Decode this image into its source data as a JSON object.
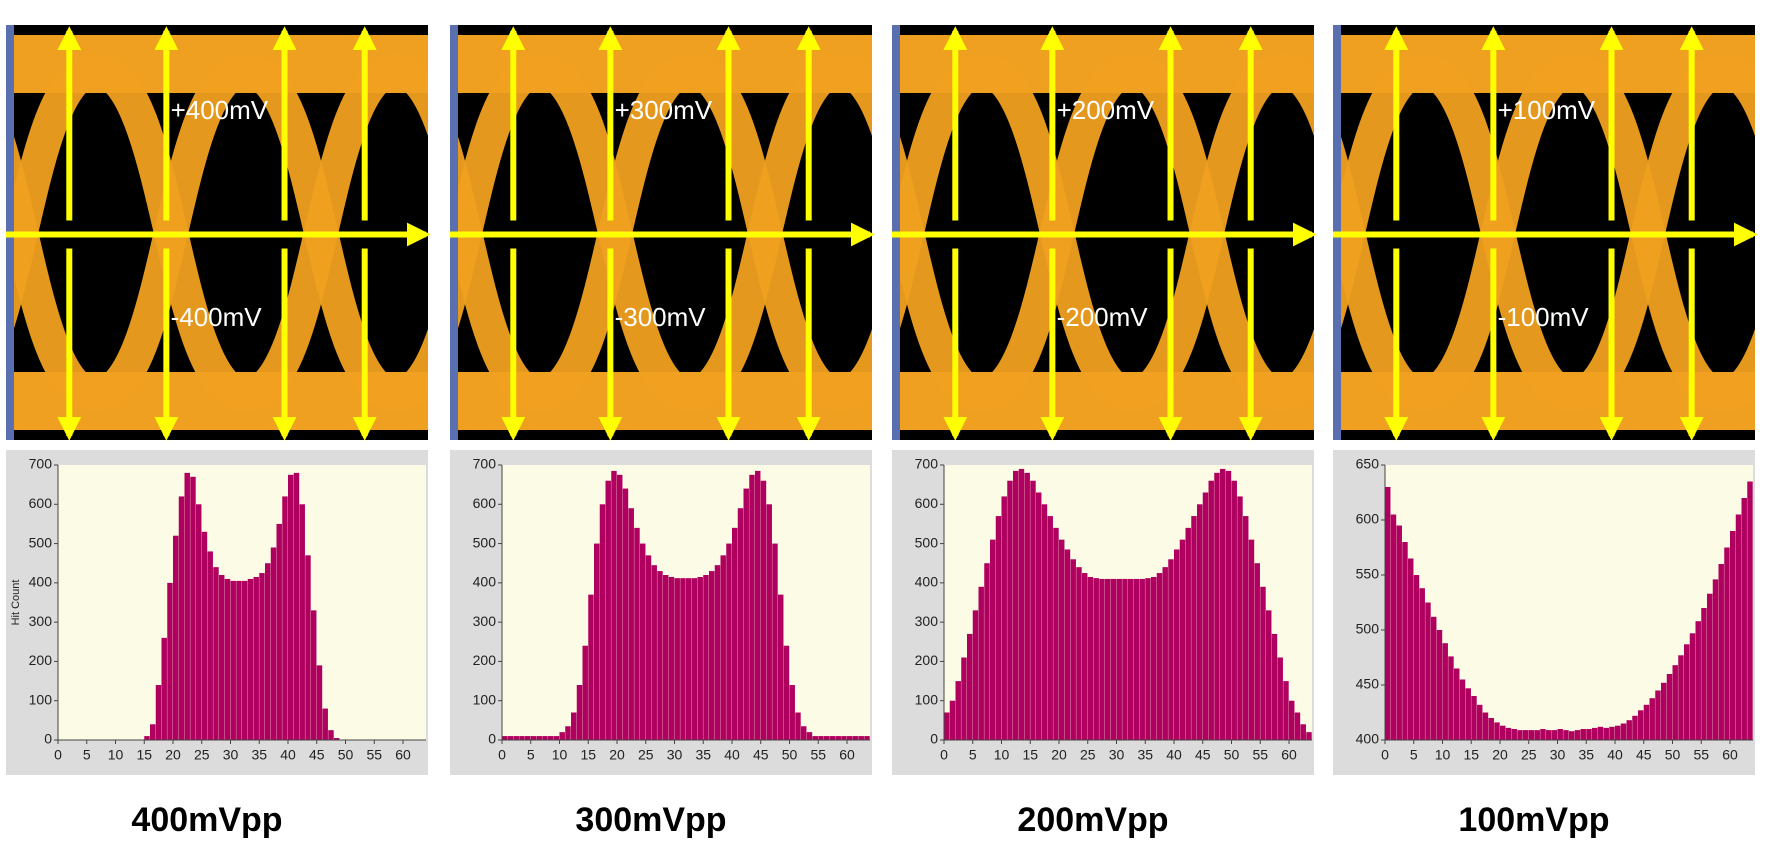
{
  "eye_diagrams": [
    {
      "upper": "+400mV",
      "lower": "-400mV"
    },
    {
      "upper": "+300mV",
      "lower": "-300mV"
    },
    {
      "upper": "+200mV",
      "lower": "-200mV"
    },
    {
      "upper": "+100mV",
      "lower": "-100mV"
    }
  ],
  "chart_data": [
    {
      "type": "histogram",
      "title": "400mVpp",
      "y_label": "Hit Count",
      "color": "#b0005f",
      "bins": [
        0,
        1,
        2,
        3,
        4,
        5,
        6,
        7,
        8,
        9,
        10,
        11,
        12,
        13,
        14,
        15,
        16,
        17,
        18,
        19,
        20,
        21,
        22,
        23,
        24,
        25,
        26,
        27,
        28,
        29,
        30,
        31,
        32,
        33,
        34,
        35,
        36,
        37,
        38,
        39,
        40,
        41,
        42,
        43,
        44,
        45,
        46,
        47,
        48,
        49,
        50,
        51,
        52,
        53,
        54,
        55,
        56,
        57,
        58,
        59,
        60,
        61,
        62,
        63,
        64
      ],
      "values": [
        0,
        0,
        0,
        0,
        0,
        0,
        0,
        0,
        0,
        0,
        0,
        0,
        0,
        0,
        0,
        10,
        40,
        140,
        260,
        400,
        520,
        620,
        680,
        670,
        600,
        530,
        480,
        440,
        420,
        410,
        405,
        405,
        405,
        410,
        415,
        425,
        450,
        490,
        550,
        620,
        675,
        680,
        600,
        470,
        330,
        190,
        80,
        25,
        5,
        0,
        0,
        0,
        0,
        0,
        0,
        0,
        0,
        0,
        0,
        0,
        0,
        0,
        0,
        0
      ],
      "xlim": [
        0,
        64
      ],
      "xticks": [
        0,
        5,
        10,
        15,
        20,
        25,
        30,
        35,
        40,
        45,
        50,
        55,
        60
      ],
      "ylim": [
        0,
        700
      ],
      "yticks": [
        0,
        100,
        200,
        300,
        400,
        500,
        600,
        700
      ]
    },
    {
      "type": "histogram",
      "title": "300mVpp",
      "color": "#b0005f",
      "bins": [
        0,
        1,
        2,
        3,
        4,
        5,
        6,
        7,
        8,
        9,
        10,
        11,
        12,
        13,
        14,
        15,
        16,
        17,
        18,
        19,
        20,
        21,
        22,
        23,
        24,
        25,
        26,
        27,
        28,
        29,
        30,
        31,
        32,
        33,
        34,
        35,
        36,
        37,
        38,
        39,
        40,
        41,
        42,
        43,
        44,
        45,
        46,
        47,
        48,
        49,
        50,
        51,
        52,
        53,
        54,
        55,
        56,
        57,
        58,
        59,
        60,
        61,
        62,
        63,
        64
      ],
      "values": [
        10,
        10,
        10,
        10,
        10,
        10,
        10,
        10,
        10,
        10,
        20,
        35,
        70,
        140,
        240,
        370,
        500,
        600,
        660,
        685,
        675,
        640,
        590,
        540,
        500,
        470,
        445,
        430,
        420,
        415,
        412,
        412,
        412,
        412,
        415,
        420,
        430,
        445,
        470,
        500,
        540,
        590,
        640,
        675,
        685,
        660,
        600,
        500,
        370,
        240,
        140,
        70,
        35,
        20,
        10,
        10,
        10,
        10,
        10,
        10,
        10,
        10,
        10,
        10
      ],
      "xlim": [
        0,
        64
      ],
      "xticks": [
        0,
        5,
        10,
        15,
        20,
        25,
        30,
        35,
        40,
        45,
        50,
        55,
        60
      ],
      "ylim": [
        0,
        700
      ],
      "yticks": [
        0,
        100,
        200,
        300,
        400,
        500,
        600,
        700
      ]
    },
    {
      "type": "histogram",
      "title": "200mVpp",
      "color": "#b0005f",
      "bins": [
        0,
        1,
        2,
        3,
        4,
        5,
        6,
        7,
        8,
        9,
        10,
        11,
        12,
        13,
        14,
        15,
        16,
        17,
        18,
        19,
        20,
        21,
        22,
        23,
        24,
        25,
        26,
        27,
        28,
        29,
        30,
        31,
        32,
        33,
        34,
        35,
        36,
        37,
        38,
        39,
        40,
        41,
        42,
        43,
        44,
        45,
        46,
        47,
        48,
        49,
        50,
        51,
        52,
        53,
        54,
        55,
        56,
        57,
        58,
        59,
        60,
        61,
        62,
        63,
        64
      ],
      "values": [
        70,
        100,
        150,
        210,
        270,
        330,
        390,
        450,
        510,
        570,
        620,
        660,
        685,
        690,
        680,
        660,
        630,
        600,
        570,
        540,
        510,
        485,
        460,
        440,
        425,
        415,
        412,
        410,
        410,
        410,
        410,
        410,
        410,
        410,
        410,
        412,
        415,
        425,
        440,
        460,
        485,
        510,
        540,
        570,
        600,
        630,
        660,
        680,
        690,
        685,
        660,
        620,
        570,
        510,
        450,
        390,
        330,
        270,
        210,
        150,
        100,
        70,
        40,
        20
      ],
      "xlim": [
        0,
        64
      ],
      "xticks": [
        0,
        5,
        10,
        15,
        20,
        25,
        30,
        35,
        40,
        45,
        50,
        55,
        60
      ],
      "ylim": [
        0,
        700
      ],
      "yticks": [
        0,
        100,
        200,
        300,
        400,
        500,
        600,
        700
      ]
    },
    {
      "type": "histogram",
      "title": "100mVpp",
      "color": "#b0005f",
      "bins": [
        0,
        1,
        2,
        3,
        4,
        5,
        6,
        7,
        8,
        9,
        10,
        11,
        12,
        13,
        14,
        15,
        16,
        17,
        18,
        19,
        20,
        21,
        22,
        23,
        24,
        25,
        26,
        27,
        28,
        29,
        30,
        31,
        32,
        33,
        34,
        35,
        36,
        37,
        38,
        39,
        40,
        41,
        42,
        43,
        44,
        45,
        46,
        47,
        48,
        49,
        50,
        51,
        52,
        53,
        54,
        55,
        56,
        57,
        58,
        59,
        60,
        61,
        62,
        63,
        64
      ],
      "values": [
        630,
        605,
        595,
        580,
        565,
        550,
        538,
        525,
        512,
        500,
        488,
        476,
        465,
        455,
        447,
        440,
        432,
        425,
        420,
        416,
        413,
        411,
        410,
        409,
        409,
        409,
        409,
        410,
        409,
        409,
        410,
        409,
        408,
        409,
        410,
        410,
        411,
        412,
        411,
        412,
        413,
        415,
        418,
        422,
        427,
        432,
        438,
        445,
        452,
        460,
        468,
        477,
        487,
        497,
        508,
        520,
        533,
        546,
        560,
        575,
        590,
        605,
        620,
        635
      ],
      "xlim": [
        0,
        64
      ],
      "xticks": [
        0,
        5,
        10,
        15,
        20,
        25,
        30,
        35,
        40,
        45,
        50,
        55,
        60
      ],
      "ylim": [
        400,
        650
      ],
      "yticks": [
        400,
        450,
        500,
        550,
        600,
        650
      ]
    }
  ]
}
